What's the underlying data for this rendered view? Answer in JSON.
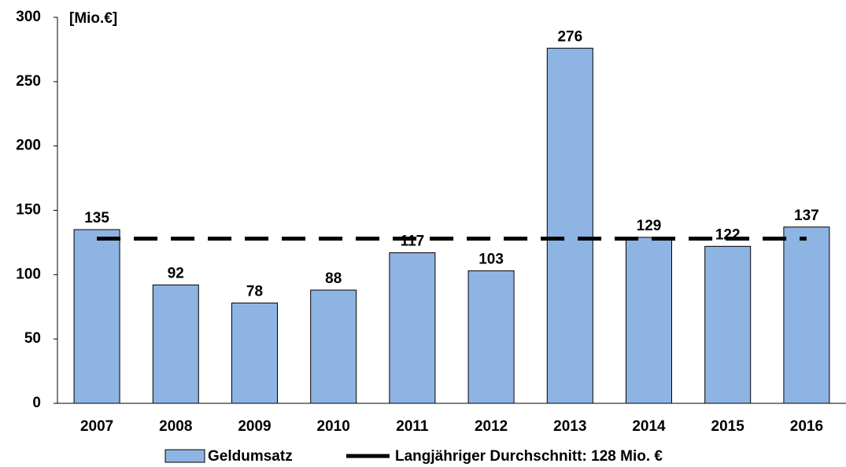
{
  "chart_data": {
    "type": "bar",
    "y_label": "[Mio.€]",
    "categories": [
      "2007",
      "2008",
      "2009",
      "2010",
      "2011",
      "2012",
      "2013",
      "2014",
      "2015",
      "2016"
    ],
    "series": [
      {
        "name": "Geldumsatz",
        "type": "bar",
        "color": "#8eb4e3",
        "values": [
          135,
          92,
          78,
          88,
          117,
          103,
          276,
          129,
          122,
          137
        ]
      },
      {
        "name": "Langjähriger Durchschnitt: 128 Mio. €",
        "type": "line",
        "color": "#000000",
        "dashed": true,
        "values": [
          128,
          128,
          128,
          128,
          128,
          128,
          128,
          128,
          128,
          128
        ]
      }
    ],
    "ylim": [
      0,
      300
    ],
    "yticks": [
      0,
      50,
      100,
      150,
      200,
      250,
      300
    ],
    "grid": false,
    "legend": "bottom"
  }
}
